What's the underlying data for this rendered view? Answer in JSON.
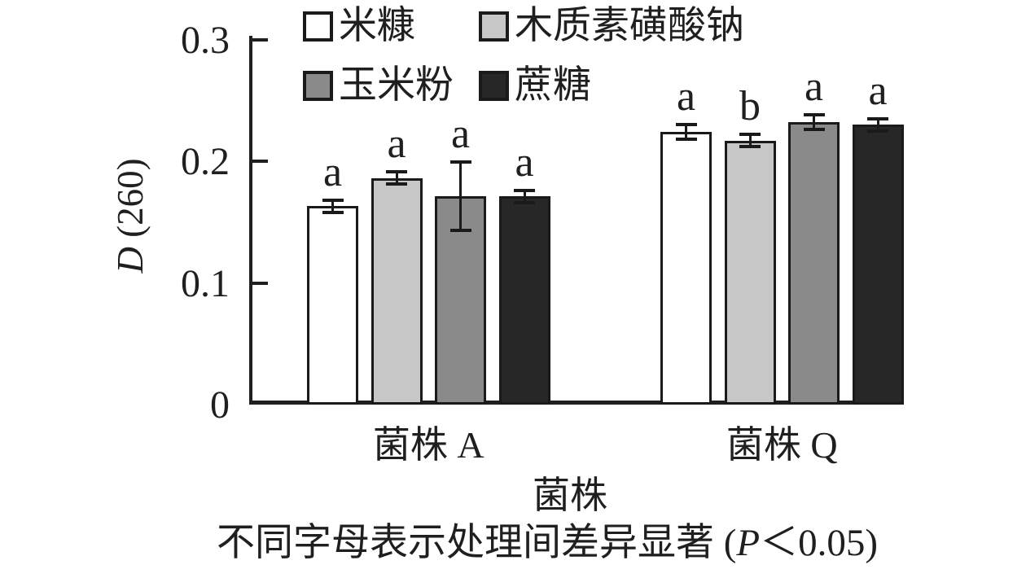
{
  "chart_data": {
    "type": "bar",
    "title": "",
    "xlabel": "菌株",
    "ylabel": {
      "italic": "D",
      "rest": " (260)"
    },
    "categories": [
      "菌株 A",
      "菌株 Q"
    ],
    "series": [
      {
        "name": "米糠",
        "color": "#ffffff",
        "values": [
          0.163,
          0.224
        ],
        "errors": [
          0.005,
          0.006
        ],
        "letters": [
          "a",
          "a"
        ]
      },
      {
        "name": "木质素磺酸钠",
        "color": "#c7c7c7",
        "values": [
          0.186,
          0.217
        ],
        "errors": [
          0.005,
          0.005
        ],
        "letters": [
          "a",
          "b"
        ]
      },
      {
        "name": "玉米粉",
        "color": "#8a8a8a",
        "values": [
          0.171,
          0.232
        ],
        "errors": [
          0.028,
          0.006
        ],
        "letters": [
          "a",
          "a"
        ]
      },
      {
        "name": "蔗糖",
        "color": "#272727",
        "values": [
          0.171,
          0.23
        ],
        "errors": [
          0.005,
          0.005
        ],
        "letters": [
          "a",
          "a"
        ]
      }
    ],
    "y_ticks": [
      0,
      0.1,
      0.2,
      0.3
    ],
    "y_tick_labels": [
      "0",
      "0.1",
      "0.2",
      "0.3"
    ],
    "ylim": [
      0,
      0.3
    ],
    "grid": false,
    "legend_position": "top-left-two-rows",
    "error_bars": true
  },
  "caption": {
    "pre": "不同字母表示处理间差异显著 (",
    "p": "P",
    "post": "＜0.05)"
  },
  "colors": {
    "axis": "#1f1f1f",
    "bar_border": "#1a1a1a",
    "text": "#1f1f1f"
  }
}
